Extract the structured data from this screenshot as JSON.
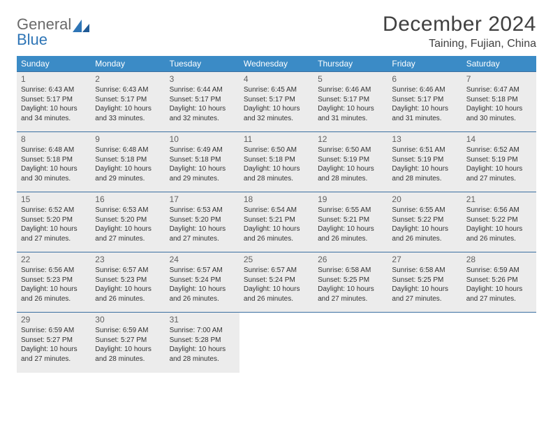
{
  "brand": {
    "name_gray": "General",
    "name_blue": "Blue"
  },
  "title": "December 2024",
  "location": "Taining, Fujian, China",
  "colors": {
    "header_bg": "#3b8bc6",
    "header_fg": "#ffffff",
    "row_border": "#3b6fa0",
    "shaded_bg": "#ececec",
    "logo_gray": "#6a6a6a",
    "logo_blue": "#2e75b6"
  },
  "day_headers": [
    "Sunday",
    "Monday",
    "Tuesday",
    "Wednesday",
    "Thursday",
    "Friday",
    "Saturday"
  ],
  "days": [
    {
      "n": 1,
      "sr": "6:43 AM",
      "ss": "5:17 PM",
      "dl": "10 hours and 34 minutes."
    },
    {
      "n": 2,
      "sr": "6:43 AM",
      "ss": "5:17 PM",
      "dl": "10 hours and 33 minutes."
    },
    {
      "n": 3,
      "sr": "6:44 AM",
      "ss": "5:17 PM",
      "dl": "10 hours and 32 minutes."
    },
    {
      "n": 4,
      "sr": "6:45 AM",
      "ss": "5:17 PM",
      "dl": "10 hours and 32 minutes."
    },
    {
      "n": 5,
      "sr": "6:46 AM",
      "ss": "5:17 PM",
      "dl": "10 hours and 31 minutes."
    },
    {
      "n": 6,
      "sr": "6:46 AM",
      "ss": "5:17 PM",
      "dl": "10 hours and 31 minutes."
    },
    {
      "n": 7,
      "sr": "6:47 AM",
      "ss": "5:18 PM",
      "dl": "10 hours and 30 minutes."
    },
    {
      "n": 8,
      "sr": "6:48 AM",
      "ss": "5:18 PM",
      "dl": "10 hours and 30 minutes."
    },
    {
      "n": 9,
      "sr": "6:48 AM",
      "ss": "5:18 PM",
      "dl": "10 hours and 29 minutes."
    },
    {
      "n": 10,
      "sr": "6:49 AM",
      "ss": "5:18 PM",
      "dl": "10 hours and 29 minutes."
    },
    {
      "n": 11,
      "sr": "6:50 AM",
      "ss": "5:18 PM",
      "dl": "10 hours and 28 minutes."
    },
    {
      "n": 12,
      "sr": "6:50 AM",
      "ss": "5:19 PM",
      "dl": "10 hours and 28 minutes."
    },
    {
      "n": 13,
      "sr": "6:51 AM",
      "ss": "5:19 PM",
      "dl": "10 hours and 28 minutes."
    },
    {
      "n": 14,
      "sr": "6:52 AM",
      "ss": "5:19 PM",
      "dl": "10 hours and 27 minutes."
    },
    {
      "n": 15,
      "sr": "6:52 AM",
      "ss": "5:20 PM",
      "dl": "10 hours and 27 minutes."
    },
    {
      "n": 16,
      "sr": "6:53 AM",
      "ss": "5:20 PM",
      "dl": "10 hours and 27 minutes."
    },
    {
      "n": 17,
      "sr": "6:53 AM",
      "ss": "5:20 PM",
      "dl": "10 hours and 27 minutes."
    },
    {
      "n": 18,
      "sr": "6:54 AM",
      "ss": "5:21 PM",
      "dl": "10 hours and 26 minutes."
    },
    {
      "n": 19,
      "sr": "6:55 AM",
      "ss": "5:21 PM",
      "dl": "10 hours and 26 minutes."
    },
    {
      "n": 20,
      "sr": "6:55 AM",
      "ss": "5:22 PM",
      "dl": "10 hours and 26 minutes."
    },
    {
      "n": 21,
      "sr": "6:56 AM",
      "ss": "5:22 PM",
      "dl": "10 hours and 26 minutes."
    },
    {
      "n": 22,
      "sr": "6:56 AM",
      "ss": "5:23 PM",
      "dl": "10 hours and 26 minutes."
    },
    {
      "n": 23,
      "sr": "6:57 AM",
      "ss": "5:23 PM",
      "dl": "10 hours and 26 minutes."
    },
    {
      "n": 24,
      "sr": "6:57 AM",
      "ss": "5:24 PM",
      "dl": "10 hours and 26 minutes."
    },
    {
      "n": 25,
      "sr": "6:57 AM",
      "ss": "5:24 PM",
      "dl": "10 hours and 26 minutes."
    },
    {
      "n": 26,
      "sr": "6:58 AM",
      "ss": "5:25 PM",
      "dl": "10 hours and 27 minutes."
    },
    {
      "n": 27,
      "sr": "6:58 AM",
      "ss": "5:25 PM",
      "dl": "10 hours and 27 minutes."
    },
    {
      "n": 28,
      "sr": "6:59 AM",
      "ss": "5:26 PM",
      "dl": "10 hours and 27 minutes."
    },
    {
      "n": 29,
      "sr": "6:59 AM",
      "ss": "5:27 PM",
      "dl": "10 hours and 27 minutes."
    },
    {
      "n": 30,
      "sr": "6:59 AM",
      "ss": "5:27 PM",
      "dl": "10 hours and 28 minutes."
    },
    {
      "n": 31,
      "sr": "7:00 AM",
      "ss": "5:28 PM",
      "dl": "10 hours and 28 minutes."
    }
  ],
  "labels": {
    "sunrise": "Sunrise:",
    "sunset": "Sunset:",
    "daylight": "Daylight:"
  },
  "grid": {
    "first_day_col": 0,
    "cols": 7,
    "trailing_blank": 4
  }
}
